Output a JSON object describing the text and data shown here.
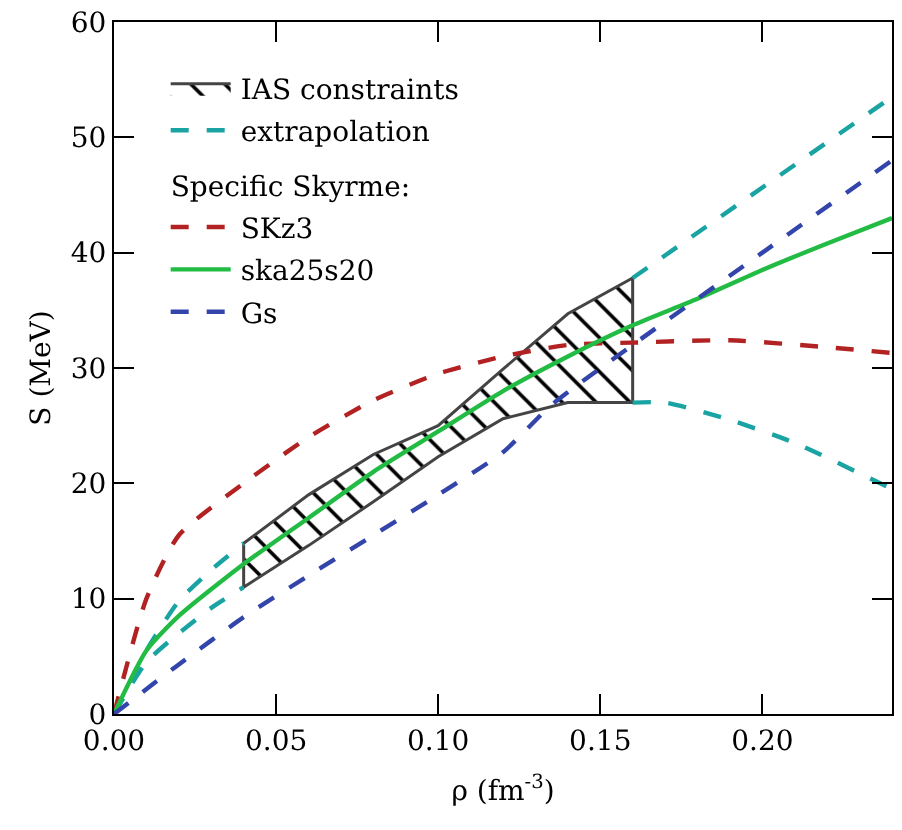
{
  "chart_data": {
    "type": "line",
    "xlabel": "ρ (fm$^{-3}$)",
    "ylabel": "S (MeV)",
    "legend_title": "Specific Skyrme:",
    "xlim": [
      0,
      0.24
    ],
    "ylim": [
      0,
      60
    ],
    "xticks": [
      {
        "value": 0,
        "label": "0.00"
      },
      {
        "value": 0.05,
        "label": "0.05"
      },
      {
        "value": 0.1,
        "label": "0.10"
      },
      {
        "value": 0.15,
        "label": "0.15"
      },
      {
        "value": 0.2,
        "label": "0.20"
      }
    ],
    "yticks": [
      0,
      10,
      20,
      30,
      40,
      50,
      60
    ],
    "grid": false,
    "legend": "top left",
    "marker": "none",
    "series": [
      {
        "name": "IAS constraints",
        "type": "area",
        "color": "#000000",
        "x": [
          0.04,
          0.06,
          0.08,
          0.1,
          0.12,
          0.14,
          0.16
        ],
        "values": [
          null,
          null,
          null,
          null,
          null,
          null,
          null
        ],
        "lower": [
          11,
          14.6,
          18.4,
          22.3,
          25.6,
          27,
          27
        ],
        "upper": [
          14.8,
          19,
          22.5,
          25,
          29.9,
          34.7,
          37.8
        ]
      },
      {
        "name": "extrapolation",
        "type": "line",
        "line_style": "dashed",
        "color": "#1aa3a3",
        "x": [
          0,
          0.01,
          0.02,
          0.03,
          0.04,
          null,
          0,
          0.01,
          0.02,
          0.03,
          0.04,
          null,
          0.16,
          0.24,
          null,
          0.16,
          0.17,
          0.19,
          0.21,
          0.24
        ],
        "values": [
          0,
          5.5,
          9.8,
          12.5,
          14.8,
          null,
          0,
          4.5,
          7,
          9.2,
          11,
          null,
          37.8,
          53.5,
          null,
          27,
          27,
          25.5,
          23.5,
          19.5
        ]
      },
      {
        "name": "SKz3",
        "line_style": "dashed",
        "color": "#b22222",
        "x": [
          0,
          0.01,
          0.02,
          0.04,
          0.06,
          0.08,
          0.1,
          0.12,
          0.14,
          0.16,
          0.19,
          0.22,
          0.24
        ],
        "values": [
          0,
          10,
          15.5,
          20,
          24,
          27.2,
          29.5,
          31,
          32,
          32.2,
          32.4,
          31.8,
          31.3
        ]
      },
      {
        "name": "ska25s20",
        "line_style": "solid",
        "color": "#22bb44",
        "x": [
          0,
          0.01,
          0.02,
          0.04,
          0.06,
          0.08,
          0.1,
          0.12,
          0.14,
          0.16,
          0.18,
          0.2,
          0.22,
          0.24
        ],
        "values": [
          0,
          5.5,
          8.5,
          13,
          17,
          21,
          24.5,
          28,
          31,
          33.7,
          36,
          38.5,
          40.8,
          43
        ]
      },
      {
        "name": "Gs",
        "line_style": "dashed",
        "color": "#3344aa",
        "x": [
          0,
          0.02,
          0.04,
          0.06,
          0.08,
          0.1,
          0.12,
          0.135,
          0.16,
          0.2,
          0.24
        ],
        "values": [
          0,
          4.3,
          8.4,
          12,
          15.5,
          19,
          22.7,
          26.8,
          32,
          40,
          48
        ]
      }
    ]
  }
}
